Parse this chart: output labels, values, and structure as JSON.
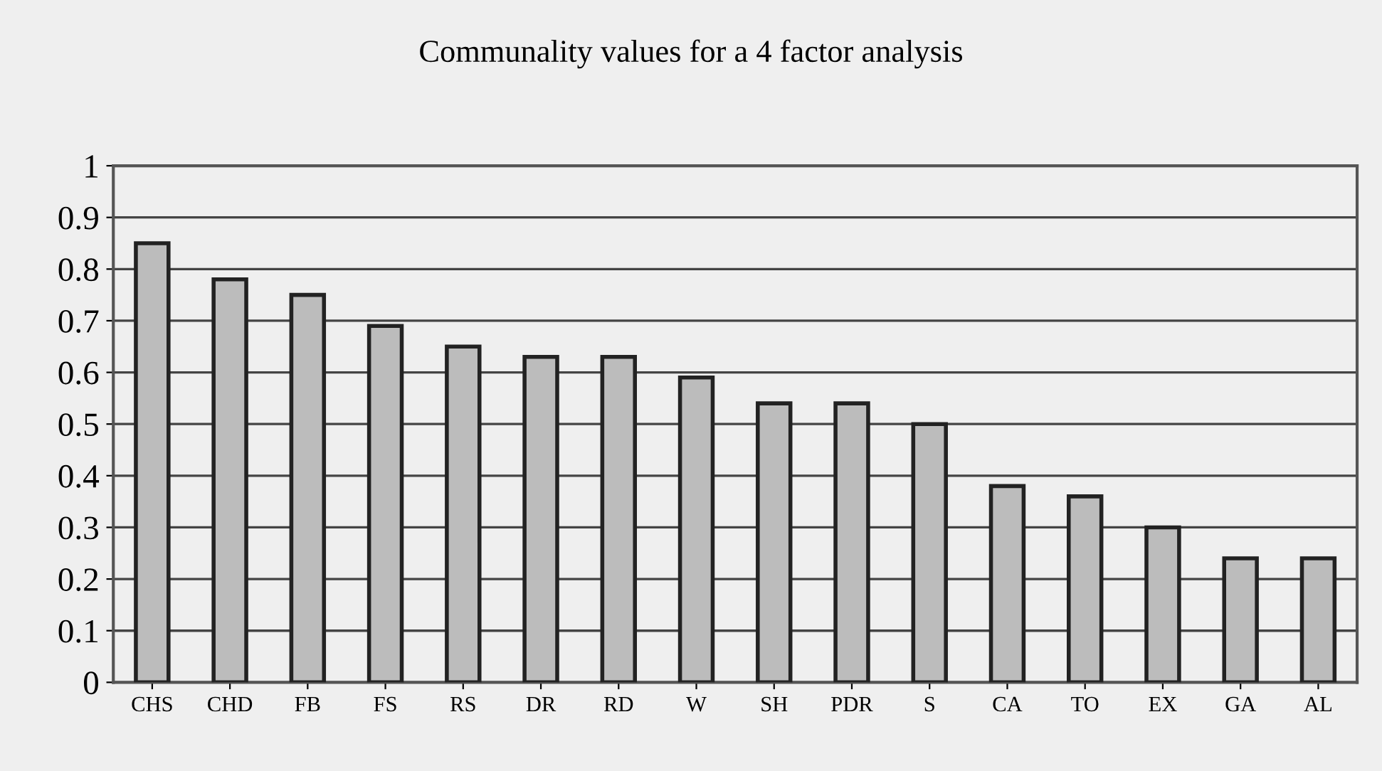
{
  "chart_data": {
    "type": "bar",
    "title": "Communality values for a 4 factor analysis",
    "categories": [
      "CHS",
      "CHD",
      "FB",
      "FS",
      "RS",
      "DR",
      "RD",
      "W",
      "SH",
      "PDR",
      "S",
      "CA",
      "TO",
      "EX",
      "GA",
      "AL"
    ],
    "values": [
      0.85,
      0.78,
      0.75,
      0.69,
      0.65,
      0.63,
      0.63,
      0.59,
      0.54,
      0.54,
      0.5,
      0.38,
      0.36,
      0.3,
      0.24,
      0.24
    ],
    "color": "#bcbcbc",
    "ylim": [
      0,
      1
    ],
    "yticks": [
      0,
      0.1,
      0.2,
      0.3,
      0.4,
      0.5,
      0.6,
      0.7,
      0.8,
      0.9,
      1
    ],
    "grid": "y",
    "legend": false
  }
}
